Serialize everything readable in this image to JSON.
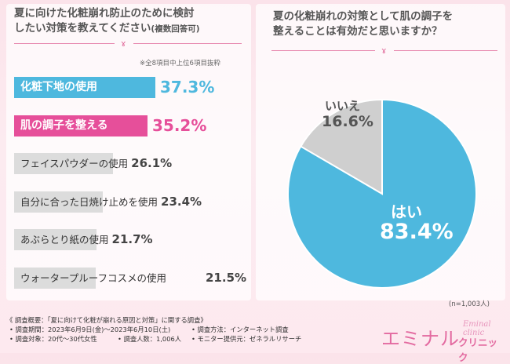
{
  "colors": {
    "accent_pink": "#e64f9a",
    "accent_blue": "#4eb8de",
    "bar_gray": "#dcdcdc",
    "pie_gray": "#cfcfcf",
    "pie_blue": "#4eb8de",
    "title_pink": "#e36aa0"
  },
  "left": {
    "question_line1": "夏に向けた化粧崩れ防止のために検討",
    "question_line2": "したい対策を教えてください",
    "question_suffix": "(複数回答可)",
    "ribbon": "ɤ",
    "note": "※全8項目中上位6項目抜粋"
  },
  "right": {
    "question_line1": "夏の化粧崩れの対策として肌の調子を",
    "question_line2": "整えることは有効だと思いますか？",
    "ribbon": "ɤ",
    "n_label": "(n=1,003人)"
  },
  "chart_data": [
    {
      "type": "bar",
      "orientation": "horizontal",
      "title": "夏に向けた化粧崩れ防止のために検討したい対策を教えてください(複数回答可)",
      "note": "※全8項目中上位6項目抜粋",
      "unit": "%",
      "categories": [
        "化粧下地の使用",
        "肌の調子を整える",
        "フェイスパウダーの使用",
        "自分に合った日焼け止めを使用",
        "あぶらとり紙の使用",
        "ウォータープルーフコスメの使用"
      ],
      "values": [
        37.3,
        35.2,
        26.1,
        23.4,
        21.7,
        21.5
      ],
      "value_labels": [
        "37.3%",
        "35.2%",
        "26.1%",
        "23.4%",
        "21.7%",
        "21.5%"
      ],
      "highlight": [
        "blue",
        "pink",
        "",
        "",
        "",
        ""
      ],
      "xlim": [
        0,
        40
      ]
    },
    {
      "type": "pie",
      "title": "夏の化粧崩れの対策として肌の調子を整えることは有効だと思いますか？",
      "labels": [
        "はい",
        "いいえ"
      ],
      "values": [
        83.4,
        16.6
      ],
      "value_labels": [
        "83.4%",
        "16.6%"
      ],
      "n": "(n=1,003人)"
    }
  ],
  "survey": {
    "title": "《 調査概要：「夏に向けて化粧が崩れる原因と対策」に関する調査》",
    "period": "• 調査期間：2023年6月9日(金)〜2023年6月10日(土)",
    "method": "• 調査方法：インターネット調査",
    "target": "• 調査対象：20代〜30代女性",
    "count": "• 調査人数：1,006人",
    "provider": "• モニター提供元：ゼネラルリサーチ"
  },
  "logo": {
    "main": "エミナル",
    "sub": "クリニック",
    "script": "Eminal clinic"
  }
}
